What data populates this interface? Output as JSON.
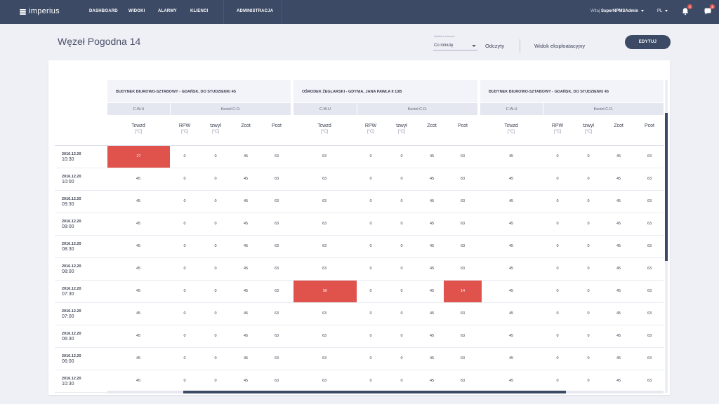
{
  "nav": {
    "brand": "imperius",
    "links": [
      "DASHBOARD",
      "WIDOKI",
      "ALARMY",
      "KLIENCI",
      "ADMINISTRACJA"
    ],
    "greeting": "Witaj",
    "username": "SuperNPMSAdmin",
    "language": "PL",
    "notifications_count": "2",
    "messages_count": "3",
    "icons": [
      "bell-icon",
      "chat-icon"
    ]
  },
  "page": {
    "title": "Węzeł Pogodna 14",
    "interval_label": "Wybierz interwał",
    "interval_value": "Co minutę",
    "readings_link": "Odczyty",
    "operational_view_link": "Widok eksploatacyjny",
    "edit_button": "EDYTUJ"
  },
  "colors": {
    "nav": "#3c4a66",
    "alert": "#e0524c",
    "header_bg": "#f3f4f9",
    "group_bg": "#e4e7ef"
  },
  "groups": {
    "cwu": "C.W.U",
    "co": "Kocioł C.O."
  },
  "columns": [
    {
      "name": "Tcwzd",
      "unit": "[°C]"
    },
    {
      "name": "RPW",
      "unit": "[°C]"
    },
    {
      "name": "tzwył",
      "unit": "[°C]"
    },
    {
      "name": "Zcot",
      "unit": ""
    },
    {
      "name": "Pcot",
      "unit": ""
    }
  ],
  "nodes": [
    "BUDYNEK BIUROWO-SZTABOWY - GDAŃSK, DO STUDZIENKI 45",
    "OŚRODEK ŻEGLARSKI - GDYNIA, JANA PAWŁA II 13B",
    "BUDYNEK BIUROWO-SZTABOWY - GDAŃSK, DO STUDZIENKI 45"
  ],
  "rows": [
    {
      "date": "2016.12.20",
      "time": "10:30",
      "v": [
        [
          "27",
          "0",
          "0",
          "45",
          "63"
        ],
        [
          "63",
          "0",
          "0",
          "45",
          "63"
        ],
        [
          "45",
          "0",
          "0",
          "45",
          "63"
        ]
      ]
    },
    {
      "date": "2016.12.20",
      "time": "10:00",
      "v": [
        [
          "45",
          "0",
          "0",
          "45",
          "63"
        ],
        [
          "63",
          "0",
          "0",
          "45",
          "63"
        ],
        [
          "45",
          "0",
          "0",
          "45",
          "63"
        ]
      ]
    },
    {
      "date": "2016.12.20",
      "time": "09:30",
      "v": [
        [
          "45",
          "0",
          "0",
          "45",
          "63"
        ],
        [
          "63",
          "0",
          "0",
          "45",
          "63"
        ],
        [
          "45",
          "0",
          "0",
          "45",
          "63"
        ]
      ]
    },
    {
      "date": "2016.12.20",
      "time": "09:00",
      "v": [
        [
          "45",
          "0",
          "0",
          "45",
          "63"
        ],
        [
          "63",
          "0",
          "0",
          "45",
          "63"
        ],
        [
          "45",
          "0",
          "0",
          "45",
          "63"
        ]
      ]
    },
    {
      "date": "2016.12.20",
      "time": "08:30",
      "v": [
        [
          "45",
          "0",
          "0",
          "45",
          "63"
        ],
        [
          "63",
          "0",
          "0",
          "45",
          "63"
        ],
        [
          "45",
          "0",
          "0",
          "45",
          "63"
        ]
      ]
    },
    {
      "date": "2016.12.20",
      "time": "08:00",
      "v": [
        [
          "45",
          "0",
          "0",
          "45",
          "63"
        ],
        [
          "63",
          "0",
          "0",
          "45",
          "63"
        ],
        [
          "45",
          "0",
          "0",
          "45",
          "63"
        ]
      ]
    },
    {
      "date": "2016.12.20",
      "time": "07:30",
      "v": [
        [
          "45",
          "0",
          "0",
          "45",
          "63"
        ],
        [
          "56",
          "0",
          "0",
          "45",
          "14"
        ],
        [
          "45",
          "0",
          "0",
          "45",
          "63"
        ]
      ]
    },
    {
      "date": "2016.12.20",
      "time": "07:00",
      "v": [
        [
          "45",
          "0",
          "0",
          "45",
          "63"
        ],
        [
          "63",
          "0",
          "0",
          "45",
          "63"
        ],
        [
          "45",
          "0",
          "0",
          "45",
          "63"
        ]
      ]
    },
    {
      "date": "2016.12.20",
      "time": "06:30",
      "v": [
        [
          "45",
          "0",
          "0",
          "45",
          "63"
        ],
        [
          "63",
          "0",
          "0",
          "45",
          "63"
        ],
        [
          "45",
          "0",
          "0",
          "45",
          "63"
        ]
      ]
    },
    {
      "date": "2016.12.20",
      "time": "06:00",
      "v": [
        [
          "45",
          "0",
          "0",
          "45",
          "63"
        ],
        [
          "63",
          "0",
          "0",
          "45",
          "63"
        ],
        [
          "45",
          "0",
          "0",
          "45",
          "63"
        ]
      ]
    },
    {
      "date": "2016.12.20",
      "time": "10:30",
      "v": [
        [
          "45",
          "0",
          "0",
          "45",
          "63"
        ],
        [
          "63",
          "0",
          "0",
          "45",
          "63"
        ],
        [
          "45",
          "0",
          "0",
          "45",
          "63"
        ]
      ]
    }
  ],
  "alerts": [
    [
      0,
      0,
      0
    ],
    [
      6,
      1,
      0
    ],
    [
      6,
      1,
      4
    ]
  ]
}
